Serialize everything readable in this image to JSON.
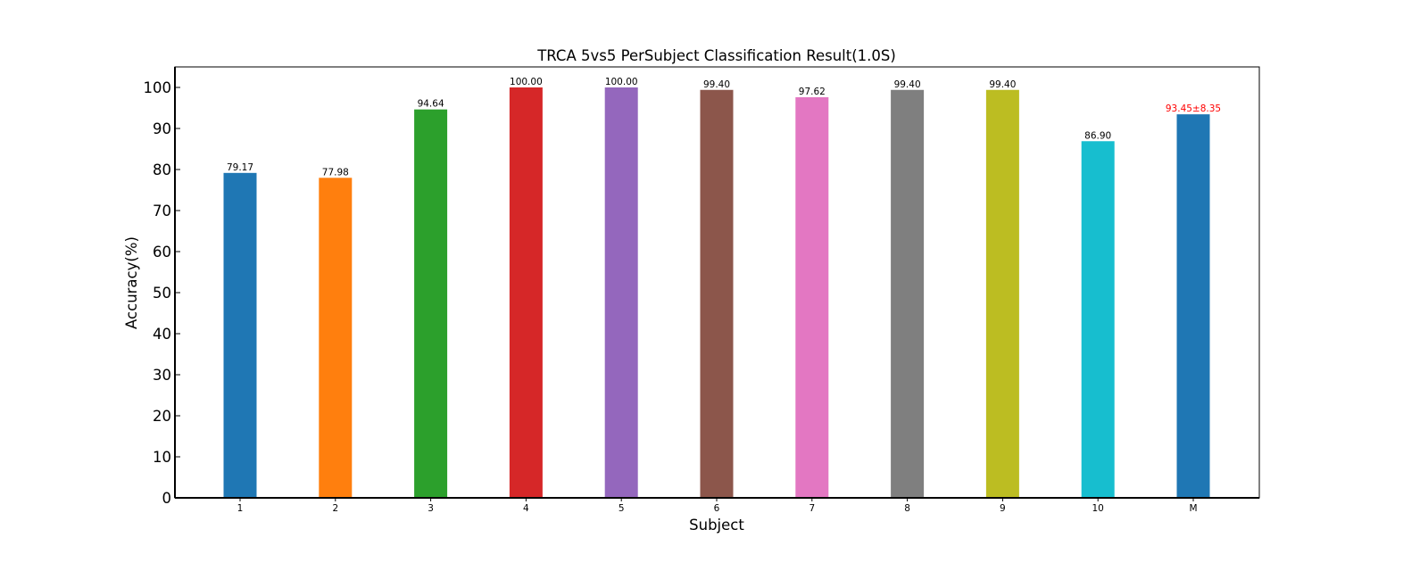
{
  "chart_data": {
    "type": "bar",
    "title": "TRCA 5vs5 PerSubject Classification Result(1.0S)",
    "xlabel": "Subject",
    "ylabel": "Accuracy(%)",
    "ylim": [
      0,
      105
    ],
    "yticks": [
      0,
      10,
      20,
      30,
      40,
      50,
      60,
      70,
      80,
      90,
      100
    ],
    "grid": false,
    "categories": [
      "1",
      "2",
      "3",
      "4",
      "5",
      "6",
      "7",
      "8",
      "9",
      "10",
      "M"
    ],
    "values": [
      79.17,
      77.98,
      94.64,
      100.0,
      100.0,
      99.4,
      97.62,
      99.4,
      99.4,
      86.9,
      93.45
    ],
    "value_labels": [
      "79.17",
      "77.98",
      "94.64",
      "100.00",
      "100.00",
      "99.40",
      "97.62",
      "99.40",
      "99.40",
      "86.90",
      "93.45±8.35"
    ],
    "colors": [
      "#1f77b4",
      "#ff7f0e",
      "#2ca02c",
      "#d62728",
      "#9467bd",
      "#8c564b",
      "#e377c2",
      "#7f7f7f",
      "#bcbd22",
      "#17becf",
      "#1f77b4"
    ],
    "label_colors": [
      "#000000",
      "#000000",
      "#000000",
      "#000000",
      "#000000",
      "#000000",
      "#000000",
      "#000000",
      "#000000",
      "#000000",
      "#ff0000"
    ]
  }
}
